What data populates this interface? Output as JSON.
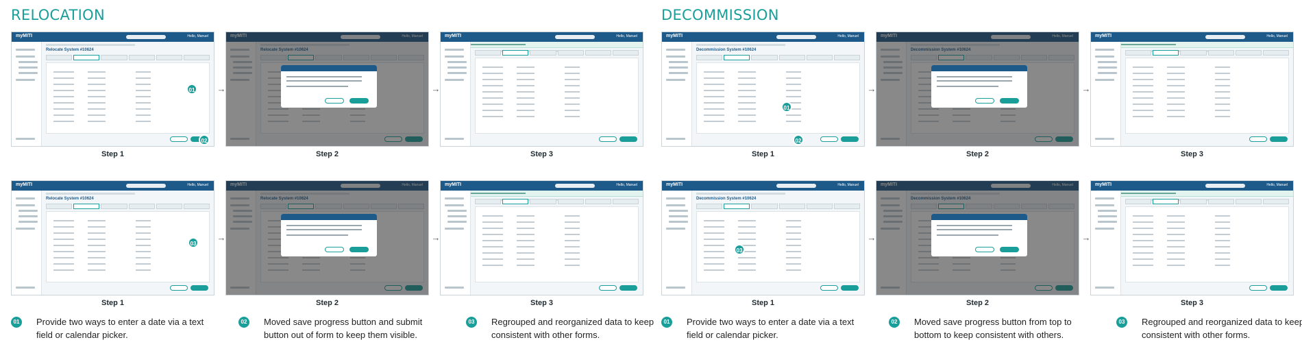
{
  "sections": {
    "relocation": "RELOCATION",
    "decommission": "DECOMMISSION"
  },
  "app": {
    "logo": "myMITI",
    "user": "Hello, Manuel"
  },
  "screens": {
    "relocate_title": "Relocate System #10624",
    "decommission_title": "Decommission System #10624"
  },
  "steps": [
    "Step 1",
    "Step 2",
    "Step 3"
  ],
  "badges": [
    "01",
    "02",
    "03"
  ],
  "notes": {
    "relocation": [
      {
        "num": "01",
        "text": "Provide two ways to enter a date via a text field or calendar picker."
      },
      {
        "num": "02",
        "text": "Moved save progress button and submit button out of form to keep them visible."
      },
      {
        "num": "03",
        "text": "Regrouped and reorganized data to keep consistent with other forms."
      }
    ],
    "decommission": [
      {
        "num": "01",
        "text": "Provide two ways to enter a date via a text field or calendar picker."
      },
      {
        "num": "02",
        "text": "Moved save progress button from top to bottom to keep consistent with others."
      },
      {
        "num": "03",
        "text": "Regrouped and reorganized data to keep consistent with other forms."
      }
    ]
  },
  "colors": {
    "accent": "#1a9e9a",
    "header": "#1d5a8a"
  }
}
